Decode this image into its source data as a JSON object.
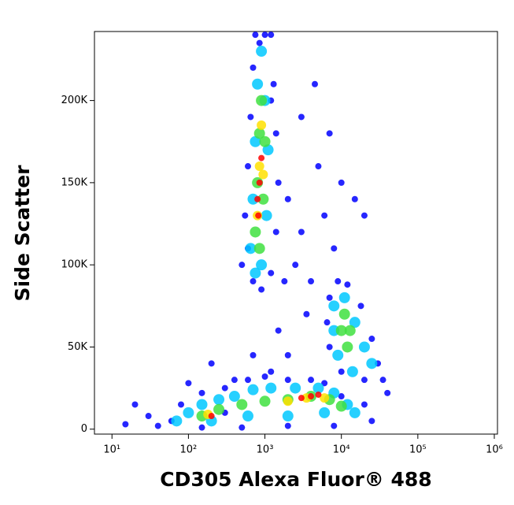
{
  "chart_data": {
    "type": "scatter",
    "x_label": "CD305 Alexa Fluor® 488",
    "y_label": "Side Scatter",
    "xscale": "log",
    "xlim": [
      5.9,
      1100000
    ],
    "ylim": [
      -3000,
      242000
    ],
    "xticks": [
      {
        "value": 10,
        "label": "10¹"
      },
      {
        "value": 100,
        "label": "10²"
      },
      {
        "value": 1000,
        "label": "10³"
      },
      {
        "value": 10000,
        "label": "10⁴"
      },
      {
        "value": 100000,
        "label": "10⁵"
      },
      {
        "value": 1000000,
        "label": "10⁶"
      }
    ],
    "yticks": [
      0,
      {
        "value": 50000,
        "label": "50K"
      },
      {
        "value": 100000,
        "label": "100K"
      },
      {
        "value": 150000,
        "label": "150K"
      },
      {
        "value": 200000,
        "label": "200K"
      }
    ],
    "series": [
      {
        "color": "#0000ff",
        "x": [
          500,
          550,
          600,
          650,
          700,
          750,
          1200,
          1300,
          1400,
          1500,
          1400,
          1200,
          900,
          700,
          600,
          1000,
          850,
          2000,
          3000,
          2500,
          4000,
          5000,
          6000,
          8000,
          3500,
          1500,
          2000,
          1200,
          700,
          400,
          200,
          100,
          20,
          15,
          30,
          10000,
          7000,
          3000,
          1800,
          15000,
          20000,
          4500,
          1200,
          300,
          40,
          60,
          80,
          150,
          300,
          600,
          1000,
          2000,
          4000,
          6000,
          10000,
          20000,
          25000,
          8000,
          2000,
          500,
          150,
          7000,
          9000,
          12000,
          18000,
          25000,
          30000,
          35000,
          20000,
          10000,
          7000,
          6500,
          40000
        ],
        "y": [
          100000,
          130000,
          160000,
          190000,
          220000,
          240000,
          240000,
          210000,
          180000,
          150000,
          120000,
          95000,
          85000,
          90000,
          110000,
          240000,
          235000,
          140000,
          120000,
          100000,
          90000,
          160000,
          130000,
          110000,
          70000,
          60000,
          45000,
          35000,
          45000,
          30000,
          40000,
          28000,
          15000,
          3000,
          8000,
          150000,
          180000,
          190000,
          90000,
          140000,
          130000,
          210000,
          200000,
          10000,
          2000,
          5000,
          15000,
          22000,
          25000,
          30000,
          32000,
          30000,
          30000,
          28000,
          20000,
          15000,
          5000,
          2000,
          2000,
          1000,
          1000,
          80000,
          90000,
          88000,
          75000,
          55000,
          40000,
          30000,
          30000,
          35000,
          50000,
          65000,
          22000
        ]
      },
      {
        "color": "#00c8ff",
        "x": [
          650,
          700,
          750,
          800,
          900,
          1000,
          1100,
          1050,
          900,
          750,
          70,
          100,
          150,
          250,
          400,
          700,
          1200,
          2500,
          5000,
          8000,
          12000,
          15000,
          6000,
          2000,
          600,
          200,
          8000,
          11000,
          15000,
          20000,
          25000,
          14000,
          9000,
          8000
        ],
        "y": [
          110000,
          140000,
          175000,
          210000,
          230000,
          200000,
          170000,
          130000,
          100000,
          95000,
          5000,
          10000,
          15000,
          18000,
          20000,
          24000,
          25000,
          25000,
          25000,
          22000,
          15000,
          10000,
          10000,
          8000,
          8000,
          5000,
          75000,
          80000,
          65000,
          50000,
          40000,
          35000,
          45000,
          60000
        ]
      },
      {
        "color": "#40e040",
        "x": [
          750,
          800,
          850,
          900,
          1000,
          950,
          850,
          150,
          250,
          500,
          1000,
          2000,
          4000,
          7000,
          10000,
          11000,
          13000,
          12000,
          10000
        ],
        "y": [
          120000,
          150000,
          180000,
          200000,
          175000,
          140000,
          110000,
          8000,
          12000,
          15000,
          17000,
          18000,
          20000,
          18000,
          14000,
          70000,
          60000,
          50000,
          60000
        ]
      },
      {
        "color": "#ffe000",
        "x": [
          800,
          850,
          900,
          950,
          180,
          2000,
          3500,
          6000
        ],
        "y": [
          130000,
          160000,
          185000,
          155000,
          9000,
          17000,
          19000,
          19000
        ]
      },
      {
        "color": "#ff0000",
        "x": [
          800,
          850,
          900,
          820,
          3000,
          4000,
          5000,
          200
        ],
        "y": [
          140000,
          150000,
          165000,
          130000,
          19000,
          20000,
          21000,
          8000
        ]
      }
    ]
  }
}
